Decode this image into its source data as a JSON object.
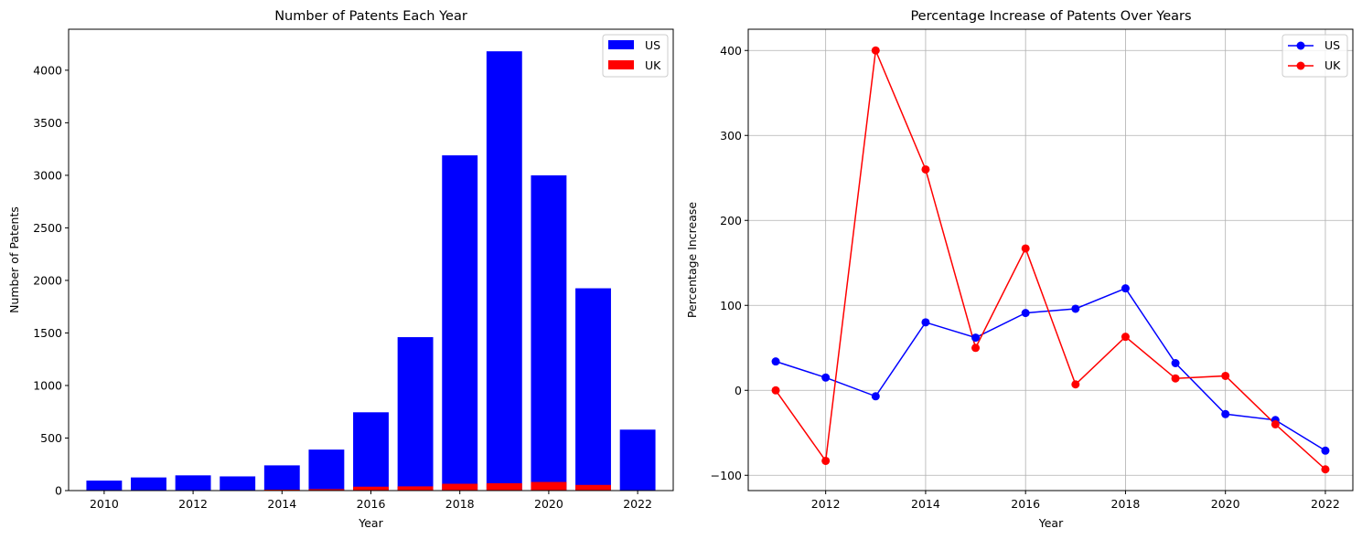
{
  "chart_data": [
    {
      "type": "bar",
      "title": "Number of Patents Each Year",
      "xlabel": "Year",
      "ylabel": "Number of Patents",
      "categories": [
        2010,
        2011,
        2012,
        2013,
        2014,
        2015,
        2016,
        2017,
        2018,
        2019,
        2020,
        2021,
        2022
      ],
      "stacked": false,
      "series": [
        {
          "name": "US",
          "color": "#0000ff",
          "values": [
            95,
            125,
            145,
            135,
            240,
            390,
            745,
            1460,
            3190,
            4180,
            3000,
            1925,
            580
          ]
        },
        {
          "name": "UK",
          "color": "#ff0000",
          "values": [
            3,
            3,
            0.5,
            2.5,
            9,
            14,
            37,
            40,
            65,
            70,
            82,
            54,
            4
          ]
        }
      ],
      "xticks": [
        2010,
        2012,
        2014,
        2016,
        2018,
        2020,
        2022
      ],
      "yticks": [
        0,
        500,
        1000,
        1500,
        2000,
        2500,
        3000,
        3500,
        4000
      ],
      "xlim": [
        2009.2,
        2022.8
      ],
      "ylim": [
        0,
        4390
      ],
      "grid": false,
      "legend": "top-right"
    },
    {
      "type": "line",
      "title": "Percentage Increase of Patents Over Years",
      "xlabel": "Year",
      "ylabel": "Percentage Increase",
      "x": [
        2011,
        2012,
        2013,
        2014,
        2015,
        2016,
        2017,
        2018,
        2019,
        2020,
        2021,
        2022
      ],
      "series": [
        {
          "name": "US",
          "color": "#0000ff",
          "values": [
            34,
            15,
            -7,
            80,
            62,
            91,
            96,
            120,
            32,
            -28,
            -35,
            -71
          ]
        },
        {
          "name": "UK",
          "color": "#ff0000",
          "values": [
            0,
            -83,
            400,
            260,
            50,
            167,
            7,
            63,
            14,
            17,
            -40,
            -93
          ]
        }
      ],
      "xticks": [
        2012,
        2014,
        2016,
        2018,
        2020,
        2022
      ],
      "yticks": [
        -100,
        0,
        100,
        200,
        300,
        400
      ],
      "xlim": [
        2010.45,
        2022.55
      ],
      "ylim": [
        -118,
        425
      ],
      "grid": true,
      "legend": "top-right"
    }
  ]
}
